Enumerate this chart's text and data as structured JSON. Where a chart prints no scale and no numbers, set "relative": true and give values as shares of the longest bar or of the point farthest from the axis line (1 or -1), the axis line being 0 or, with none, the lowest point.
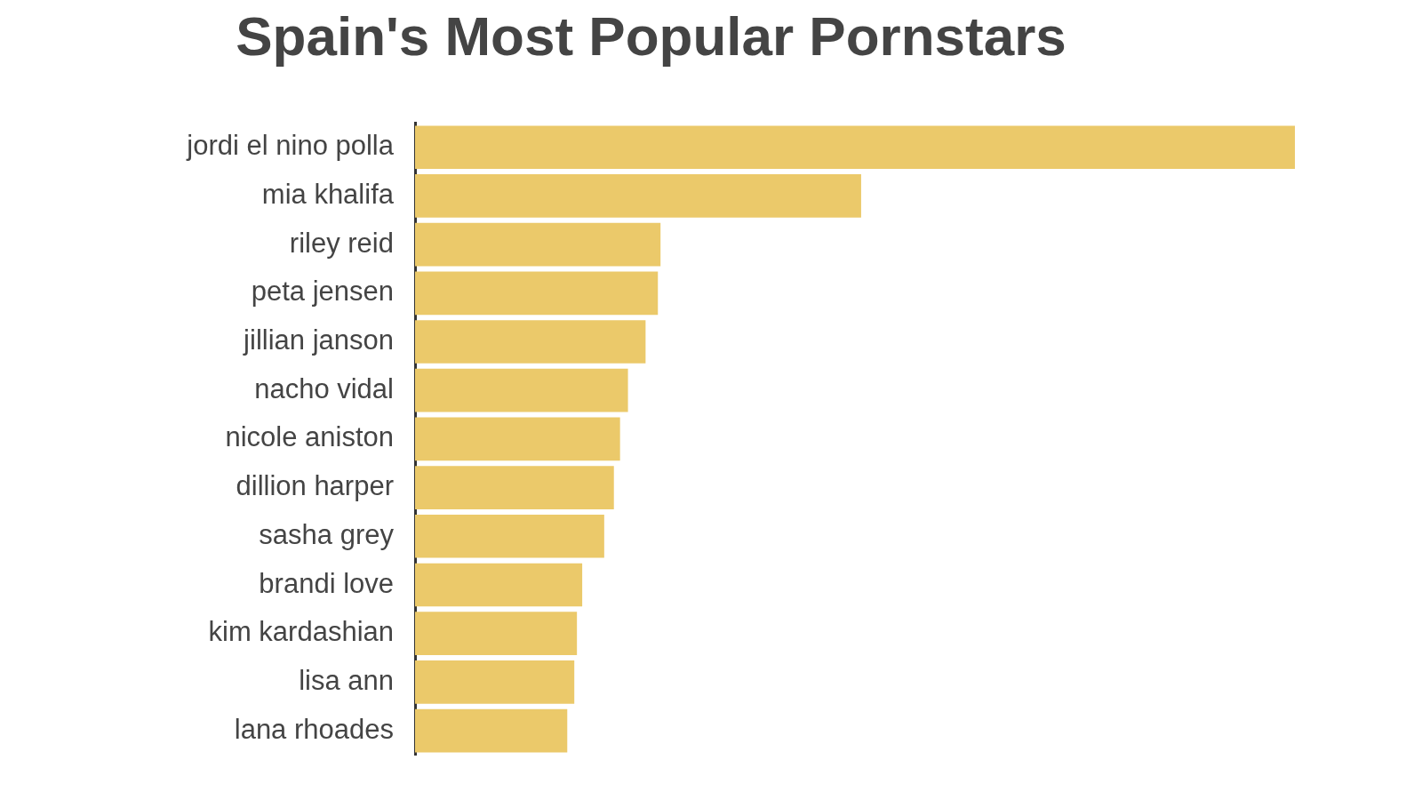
{
  "chart_data": {
    "type": "bar",
    "title": "Spain's Most Popular Pornstars",
    "orientation": "horizontal",
    "relative": true,
    "color": "#ebc96a",
    "categories": [
      "jordi el nino polla",
      "mia khalifa",
      "riley reid",
      "peta jensen",
      "jillian janson",
      "nacho vidal",
      "nicole aniston",
      "dillion harper",
      "sasha grey",
      "brandi love",
      "kim kardashian",
      "lisa ann",
      "lana rhoades"
    ],
    "values": [
      1,
      0.507,
      0.279,
      0.276,
      0.262,
      0.242,
      0.233,
      0.226,
      0.215,
      0.19,
      0.184,
      0.181,
      0.173
    ]
  }
}
